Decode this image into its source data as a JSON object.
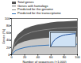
{
  "chart_data": [
    {
      "type": "area",
      "x_label": "Number of sequences (×1,000)",
      "y_label": "Genes (%)",
      "x": [
        0,
        5,
        10,
        20,
        30,
        40,
        50,
        60,
        70,
        80,
        90,
        100
      ],
      "xlim": [
        0,
        100
      ],
      "xticks": [
        0,
        20,
        40,
        60,
        80,
        100
      ],
      "ylim": [
        0,
        100
      ],
      "yticks": [
        0,
        20,
        40,
        60,
        80,
        100
      ],
      "stacked": false,
      "legend": "top-left",
      "series": [
        {
          "name": "Total genes",
          "type": "area",
          "color": "#555555",
          "values": [
            0,
            40,
            55,
            70,
            77,
            82,
            85,
            88,
            90,
            91,
            92,
            93
          ]
        },
        {
          "name": "Genes with homologs",
          "type": "area",
          "color": "#c8c8c8",
          "values": [
            0,
            20,
            28,
            36,
            40,
            43,
            45,
            46,
            47,
            48,
            48,
            49
          ]
        },
        {
          "name": "Predicted for the genome",
          "type": "line",
          "color": "#888888",
          "values": [
            0,
            30,
            42,
            55,
            62,
            66,
            69,
            71,
            73,
            74,
            75,
            76
          ]
        },
        {
          "name": "Predicted for the transcriptome",
          "type": "line",
          "color": "#2f6fb5",
          "values": [
            0,
            10,
            15,
            20,
            23,
            25,
            26,
            27,
            28,
            28,
            29,
            29
          ]
        }
      ]
    },
    {
      "type": "line",
      "x": [
        0,
        1,
        2,
        3,
        4,
        5,
        6,
        7,
        8,
        9,
        10
      ],
      "xlim": [
        0,
        10
      ],
      "ylim": [
        0,
        100
      ],
      "tick_labels": false,
      "color": "#1f4e9a",
      "values": [
        0,
        35,
        55,
        67,
        75,
        81,
        85,
        88,
        90,
        92,
        93
      ]
    }
  ]
}
